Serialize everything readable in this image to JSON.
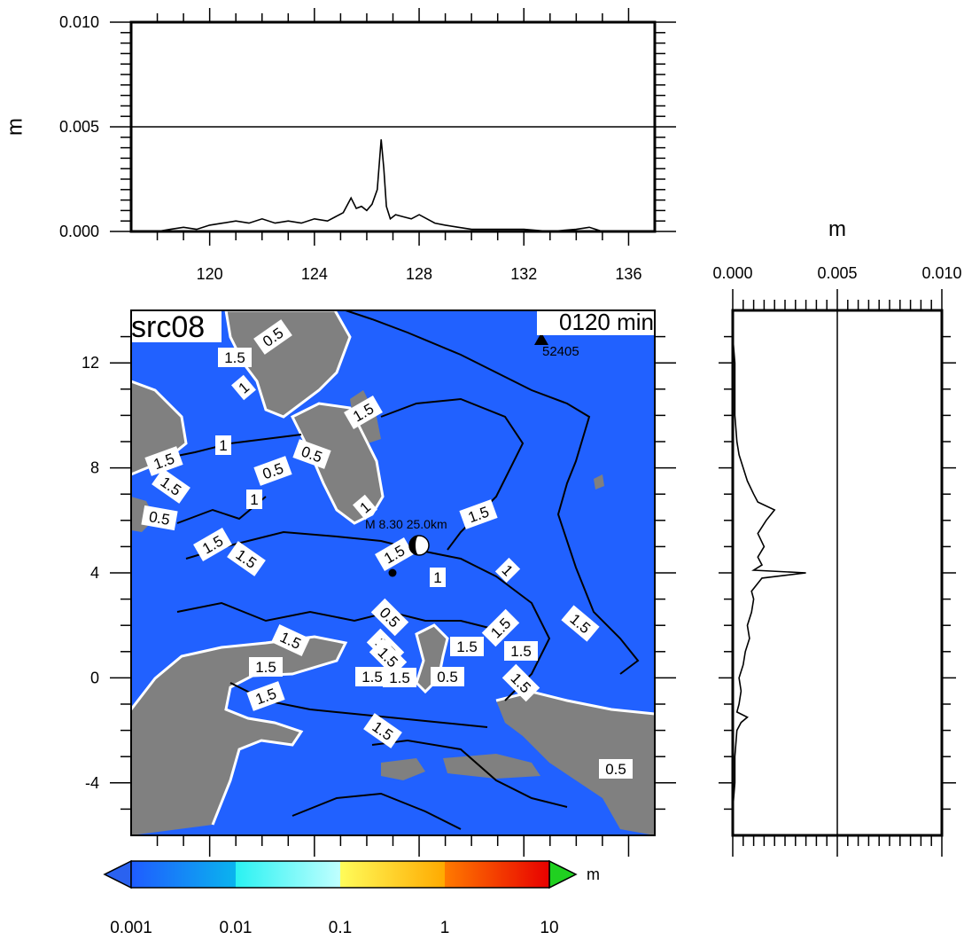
{
  "chart_data": [
    {
      "type": "line",
      "panel": "top-profile",
      "ylabel": "m",
      "xlim": [
        117,
        137
      ],
      "ylim": [
        0,
        0.01
      ],
      "x_ticks": [
        120,
        124,
        128,
        132,
        136
      ],
      "x_tick_labels": [
        "120",
        "124",
        "128",
        "132",
        "136"
      ],
      "y_ticks": [
        0.0,
        0.005,
        0.01
      ],
      "y_tick_labels": [
        "0.000",
        "0.005",
        "0.010"
      ],
      "gridlines_y": [
        0.005
      ],
      "series": [
        {
          "x": [
            118.0,
            118.5,
            119.0,
            119.5,
            120.0,
            120.5,
            121.0,
            121.5,
            122.0,
            122.5,
            123.0,
            123.5,
            124.0,
            124.5,
            124.8,
            125.1,
            125.4,
            125.6,
            125.8,
            126.0,
            126.2,
            126.4,
            126.55,
            126.65,
            126.75,
            126.9,
            127.1,
            127.4,
            127.7,
            128.0,
            128.3,
            128.6,
            129.0,
            129.5,
            130.0,
            131.0,
            132.0,
            133.0,
            134.0,
            134.5,
            135.0
          ],
          "y": [
            0.0,
            0.0001,
            0.0002,
            0.0001,
            0.0003,
            0.0004,
            0.0005,
            0.0004,
            0.0006,
            0.0004,
            0.0005,
            0.0004,
            0.0006,
            0.0005,
            0.0007,
            0.0009,
            0.0016,
            0.0011,
            0.0012,
            0.001,
            0.0013,
            0.002,
            0.0044,
            0.003,
            0.0012,
            0.0006,
            0.0008,
            0.0007,
            0.0006,
            0.0008,
            0.0006,
            0.0004,
            0.0003,
            0.0002,
            0.0001,
            0.0001,
            0.0001,
            0.0,
            0.0001,
            0.0002,
            0.0
          ]
        }
      ]
    },
    {
      "type": "line",
      "panel": "right-profile",
      "xlabel": "m",
      "xlim": [
        0,
        0.01
      ],
      "ylim": [
        -6,
        14
      ],
      "x_ticks": [
        0.0,
        0.005,
        0.01
      ],
      "x_tick_labels": [
        "0.000",
        "0.005",
        "0.010"
      ],
      "gridlines_x": [
        0.005
      ],
      "series": [
        {
          "y": [
            -6.0,
            -5.0,
            -4.0,
            -3.0,
            -2.0,
            -1.7,
            -1.5,
            -1.3,
            -1.0,
            -0.5,
            0.0,
            0.5,
            1.0,
            1.5,
            2.0,
            2.5,
            3.0,
            3.3,
            3.6,
            3.8,
            4.0,
            4.1,
            4.3,
            4.6,
            5.0,
            5.5,
            6.0,
            6.4,
            6.7,
            7.0,
            7.5,
            8.0,
            8.5,
            9.0,
            10.0,
            11.0,
            12.0,
            13.0,
            14.0
          ],
          "x": [
            0.0,
            0.0,
            0.0001,
            0.0001,
            0.0002,
            0.0004,
            0.0007,
            0.0002,
            0.0003,
            0.0004,
            0.0003,
            0.0005,
            0.0006,
            0.0008,
            0.0007,
            0.0009,
            0.001,
            0.0009,
            0.0012,
            0.0014,
            0.0035,
            0.001,
            0.0014,
            0.0012,
            0.0015,
            0.0012,
            0.0016,
            0.002,
            0.0012,
            0.001,
            0.0007,
            0.0005,
            0.0003,
            0.0002,
            0.0001,
            0.0001,
            0.0001,
            0.0,
            0.0
          ]
        }
      ]
    },
    {
      "type": "heatmap",
      "panel": "map",
      "title": "src08",
      "time_label": "0120 min",
      "xlim": [
        117,
        137
      ],
      "ylim": [
        -6,
        14
      ],
      "y_ticks": [
        -4,
        0,
        4,
        8,
        12
      ],
      "y_tick_labels": [
        "-4",
        "0",
        "4",
        "8",
        "12"
      ],
      "ocean_color": "#2161ff",
      "land_color": "#808080",
      "station": {
        "name": "52405",
        "lon": 132.3,
        "lat": 12.9
      },
      "source_label": "M 8.30  25.0km",
      "source_point": {
        "lon": 127.6,
        "lat": 5.2
      },
      "epicenter_point": {
        "lon": 127.0,
        "lat": 4.1
      },
      "contour_labels": [
        "0.5",
        "1.5",
        "1",
        "1.5",
        "1",
        "0.5",
        "1.5",
        "0.5",
        "1.5",
        "1",
        "1",
        "0.5",
        "1.5",
        "1.5",
        "1.5",
        "1.5",
        "1",
        "1",
        "0.5",
        "1.5",
        "1.5",
        "1.5",
        "1.5",
        "1.5",
        "1.5",
        "1.5",
        "1.5",
        "1.5",
        "1.5",
        "0.5",
        "1.5",
        "1.5",
        "1.5",
        "0.5"
      ]
    }
  ],
  "colorbar": {
    "unit": "m",
    "tick_labels": [
      "0.001",
      "0.01",
      "0.1",
      "1",
      "10"
    ],
    "segment_colors": [
      [
        "#1f5cff",
        "#0ab4ee"
      ],
      [
        "#2af2f2",
        "#c0ffff"
      ],
      [
        "#fffc5a",
        "#ffaa00"
      ],
      [
        "#ff7a00",
        "#e80000"
      ]
    ],
    "under_color": "#2a62f0",
    "over_color": "#20d020"
  }
}
